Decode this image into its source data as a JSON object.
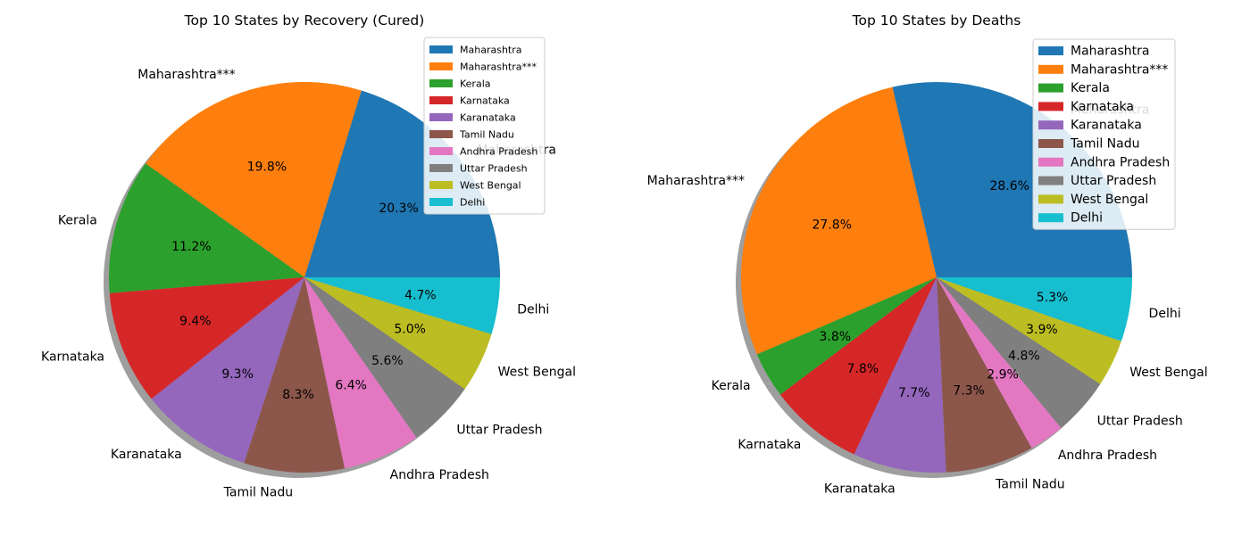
{
  "colors": [
    "#1f77b4",
    "#ff7f0e",
    "#2ca02c",
    "#d62728",
    "#9467bd",
    "#8c564b",
    "#e377c2",
    "#7f7f7f",
    "#bcbd22",
    "#17becf"
  ],
  "chart_data": [
    {
      "type": "pie",
      "title": "Top 10 States by Recovery (Cured)",
      "labels": [
        "Maharashtra",
        "Maharashtra***",
        "Kerala",
        "Karnataka",
        "Karanataka",
        "Tamil Nadu",
        "Andhra Pradesh",
        "Uttar Pradesh",
        "West Bengal",
        "Delhi"
      ],
      "values": [
        20.3,
        19.8,
        11.2,
        9.4,
        9.3,
        8.3,
        6.4,
        5.6,
        5.0,
        4.7
      ],
      "value_labels": [
        "20.3%",
        "19.8%",
        "11.2%",
        "9.4%",
        "9.3%",
        "8.3%",
        "6.4%",
        "5.6%",
        "5.0%",
        "4.7%"
      ],
      "legend": {
        "placement": "top-right",
        "entries": [
          "Maharashtra",
          "Maharashtra***",
          "Kerala",
          "Karnataka",
          "Karanataka",
          "Tamil Nadu",
          "Andhra Pradesh",
          "Uttar Pradesh",
          "West Bengal",
          "Delhi"
        ]
      },
      "shadow": true
    },
    {
      "type": "pie",
      "title": "Top 10 States by Deaths",
      "labels": [
        "Maharashtra",
        "Maharashtra***",
        "Kerala",
        "Karnataka",
        "Karanataka",
        "Tamil Nadu",
        "Andhra Pradesh",
        "Uttar Pradesh",
        "West Bengal",
        "Delhi"
      ],
      "values": [
        28.6,
        27.8,
        3.8,
        7.8,
        7.7,
        7.3,
        2.9,
        4.8,
        3.9,
        5.3
      ],
      "value_labels": [
        "28.6%",
        "27.8%",
        "3.8%",
        "7.8%",
        "7.7%",
        "7.3%",
        "2.9%",
        "4.8%",
        "3.9%",
        "5.3%"
      ],
      "legend": {
        "placement": "top-right",
        "entries": [
          "Maharashtra",
          "Maharashtra***",
          "Kerala",
          "Karnataka",
          "Karanataka",
          "Tamil Nadu",
          "Andhra Pradesh",
          "Uttar Pradesh",
          "West Bengal",
          "Delhi"
        ]
      },
      "shadow": true
    }
  ]
}
